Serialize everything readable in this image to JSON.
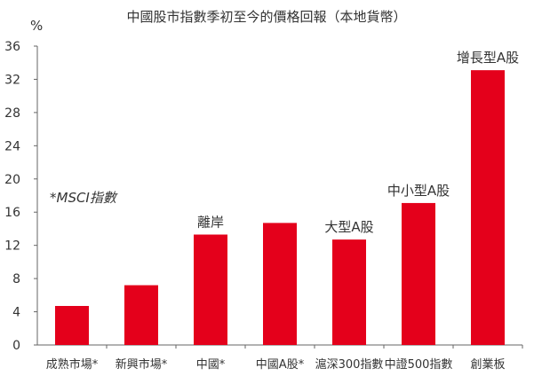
{
  "chart_data": {
    "type": "bar",
    "title": "中國股市指數季初至今的價格回報（本地貨幣）",
    "ylabel": "%",
    "ylim": [
      0,
      36
    ],
    "yticks": [
      0,
      4,
      8,
      12,
      16,
      20,
      24,
      28,
      32,
      36
    ],
    "categories": [
      "成熟市場*",
      "新興市場*",
      "中國*",
      "中國A股*",
      "滬深300指數",
      "中證500指數",
      "創業板"
    ],
    "values": [
      4.7,
      7.2,
      13.3,
      14.7,
      12.7,
      17.1,
      33.1
    ],
    "bar_labels": [
      "",
      "",
      "離岸",
      "",
      "大型A股",
      "中小型A股",
      "增長型A股"
    ],
    "bar_color": "#e4001b",
    "grid": false,
    "annotation": "*MSCI指數"
  }
}
